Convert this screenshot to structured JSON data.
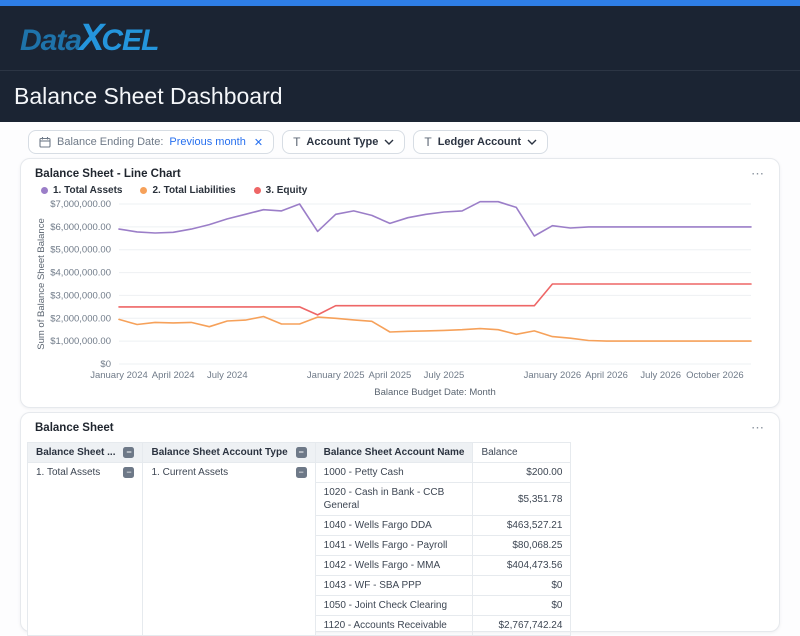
{
  "header": {
    "logo": {
      "part1": "Data",
      "part_x": "X",
      "part2": "CEL"
    },
    "page_title": "Balance Sheet Dashboard"
  },
  "filters": {
    "date_chip": {
      "label": "Balance Ending Date:",
      "value": "Previous month",
      "close": "✕"
    },
    "account_type": {
      "icon": "T",
      "label": "Account Type"
    },
    "ledger_account": {
      "icon": "T",
      "label": "Ledger Account"
    }
  },
  "chart_panel": {
    "title": "Balance Sheet - Line Chart",
    "menu": "⋯"
  },
  "chart_data": {
    "type": "line",
    "title": "Balance Sheet - Line Chart",
    "xlabel": "Balance Budget Date: Month",
    "ylabel": "Sum of Balance Sheet Balance",
    "ylim": [
      0,
      7000000
    ],
    "grid": "horizontal",
    "legend_position": "top-left",
    "y_ticks": [
      "$0",
      "$1,000,000.00",
      "$2,000,000.00",
      "$3,000,000.00",
      "$4,000,000.00",
      "$5,000,000.00",
      "$6,000,000.00",
      "$7,000,000.00"
    ],
    "x": [
      "2024-01",
      "2024-02",
      "2024-03",
      "2024-04",
      "2024-05",
      "2024-06",
      "2024-07",
      "2024-08",
      "2024-09",
      "2024-10",
      "2024-11",
      "2024-12",
      "2025-01",
      "2025-02",
      "2025-03",
      "2025-04",
      "2025-05",
      "2025-06",
      "2025-07",
      "2025-08",
      "2025-09",
      "2025-10",
      "2025-11",
      "2025-12",
      "2026-01",
      "2026-02",
      "2026-03",
      "2026-04",
      "2026-05",
      "2026-06",
      "2026-07",
      "2026-08",
      "2026-09",
      "2026-10",
      "2026-11",
      "2026-12"
    ],
    "x_tick_indices": [
      0,
      3,
      6,
      12,
      15,
      18,
      24,
      27,
      30,
      33
    ],
    "x_tick_labels": [
      "January 2024",
      "April 2024",
      "July 2024",
      "January 2025",
      "April 2025",
      "July 2025",
      "January 2026",
      "April 2026",
      "July 2026",
      "October 2026"
    ],
    "series": [
      {
        "name": "1. Total Assets",
        "color": "#9b7ec8",
        "values": [
          5900000,
          5780000,
          5730000,
          5760000,
          5900000,
          6100000,
          6350000,
          6550000,
          6750000,
          6700000,
          7000000,
          5800000,
          6550000,
          6700000,
          6500000,
          6150000,
          6400000,
          6550000,
          6650000,
          6700000,
          7100000,
          7100000,
          6850000,
          5600000,
          6050000,
          5950000,
          6000000,
          6000000,
          6000000,
          6000000,
          6000000,
          6000000,
          6000000,
          6000000,
          6000000,
          6000000
        ]
      },
      {
        "name": "2. Total Liabilities",
        "color": "#f6a15a",
        "values": [
          1950000,
          1730000,
          1820000,
          1800000,
          1820000,
          1630000,
          1880000,
          1920000,
          2080000,
          1750000,
          1750000,
          2050000,
          2000000,
          1930000,
          1870000,
          1400000,
          1430000,
          1450000,
          1470000,
          1500000,
          1550000,
          1500000,
          1300000,
          1450000,
          1200000,
          1130000,
          1030000,
          1000000,
          1000000,
          1000000,
          1000000,
          1000000,
          1000000,
          1000000,
          1000000,
          1000000
        ]
      },
      {
        "name": "3. Equity",
        "color": "#ee6666",
        "values": [
          2500000,
          2500000,
          2500000,
          2500000,
          2500000,
          2500000,
          2500000,
          2500000,
          2500000,
          2500000,
          2500000,
          2150000,
          2550000,
          2550000,
          2550000,
          2550000,
          2550000,
          2550000,
          2550000,
          2550000,
          2550000,
          2550000,
          2550000,
          2550000,
          3500000,
          3500000,
          3500000,
          3500000,
          3500000,
          3500000,
          3500000,
          3500000,
          3500000,
          3500000,
          3500000,
          3500000
        ]
      }
    ]
  },
  "table_panel": {
    "title": "Balance Sheet",
    "menu": "⋯",
    "columns": [
      "Balance Sheet ...",
      "Balance Sheet Account Type",
      "Balance Sheet Account Name",
      "Balance"
    ],
    "group_assets": "1. Total Assets",
    "group_current_assets": "1. Current Assets",
    "collapse_glyph": "−",
    "rows": [
      {
        "account": "1000 - Petty Cash",
        "balance": "$200.00"
      },
      {
        "account": "1020 - Cash in Bank - CCB General",
        "balance": "$5,351.78"
      },
      {
        "account": "1040 - Wells Fargo DDA",
        "balance": "$463,527.21"
      },
      {
        "account": "1041 - Wells Fargo - Payroll",
        "balance": "$80,068.25"
      },
      {
        "account": "1042 - Wells Fargo - MMA",
        "balance": "$404,473.56"
      },
      {
        "account": "1043 - WF - SBA PPP",
        "balance": "$0"
      },
      {
        "account": "1050 - Joint Check Clearing",
        "balance": "$0"
      },
      {
        "account": "1120 - Accounts Receivable",
        "balance": "$2,767,742.24"
      }
    ]
  }
}
